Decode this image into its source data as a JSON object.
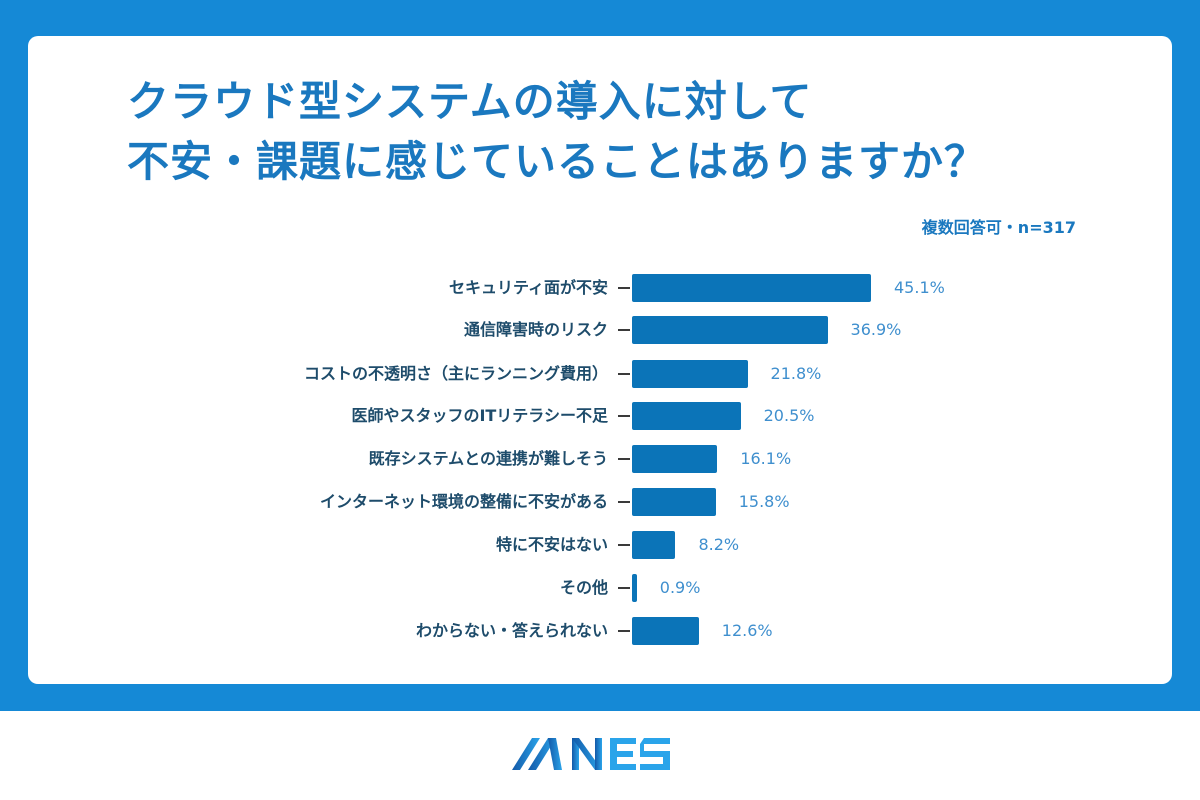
{
  "header": {
    "title_line1": "クラウド型システムの導入に対して",
    "title_line2": "不安・課題に感じていることはありますか？",
    "note": "複数回答可・n=317"
  },
  "colors": {
    "frame": "#1589d6",
    "title": "#1a78bf",
    "bar": "#0b74b8",
    "label": "#1e4c6b",
    "value": "#3f8fce"
  },
  "brand": {
    "logo_text": "MNES"
  },
  "chart_data": {
    "type": "bar",
    "orientation": "horizontal",
    "title": "クラウド型システムの導入に対して不安・課題に感じていることはありますか？",
    "subtitle": "複数回答可・n=317",
    "xlabel": "",
    "ylabel": "",
    "unit": "%",
    "grid": false,
    "legend": null,
    "xlim": [
      0,
      50
    ],
    "categories": [
      "セキュリティ面が不安",
      "通信障害時のリスク",
      "コストの不透明さ（主にランニング費用）",
      "医師やスタッフのITリテラシー不足",
      "既存システムとの連携が難しそう",
      "インターネット環境の整備に不安がある",
      "特に不安はない",
      "その他",
      "わからない・答えられない"
    ],
    "values": [
      45.1,
      36.9,
      21.8,
      20.5,
      16.1,
      15.8,
      8.2,
      0.9,
      12.6
    ],
    "value_labels": [
      "45.1%",
      "36.9%",
      "21.8%",
      "20.5%",
      "16.1%",
      "15.8%",
      "8.2%",
      "0.9%",
      "12.6%"
    ]
  }
}
